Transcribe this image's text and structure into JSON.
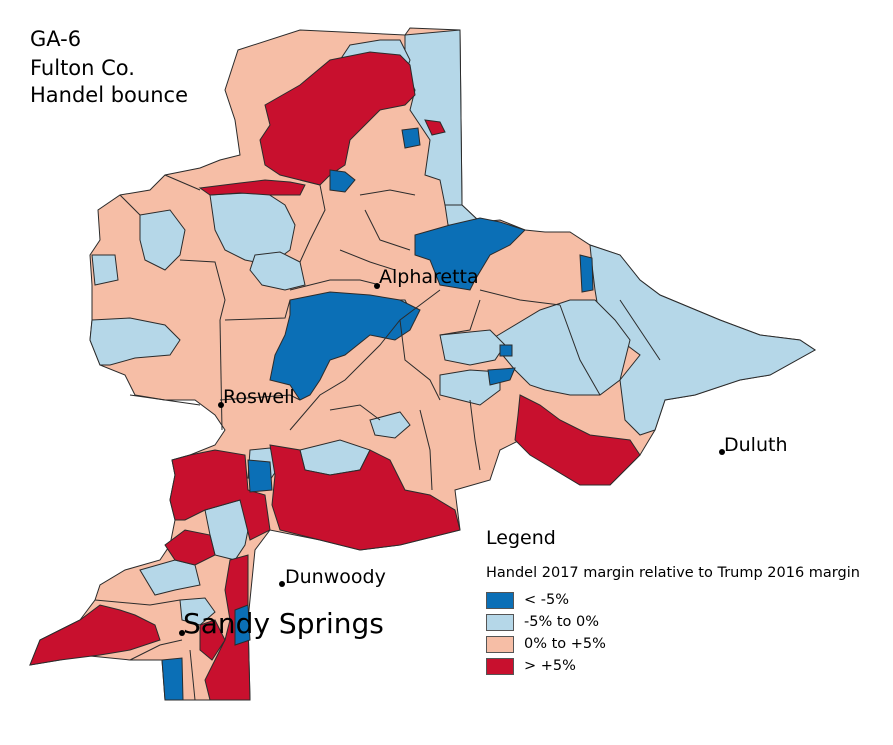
{
  "title": {
    "lines": [
      "GA-6",
      "Fulton Co.",
      "Handel bounce"
    ]
  },
  "colors": {
    "strong_blue": "#0b6fb6",
    "light_blue": "#b5d7e8",
    "light_salmon": "#f6bea6",
    "strong_red": "#c8102e",
    "boundary": "#2b2b2b"
  },
  "places": [
    {
      "name": "Alpharetta",
      "key": "alpharetta"
    },
    {
      "name": "Roswell",
      "key": "roswell"
    },
    {
      "name": "Duluth",
      "key": "duluth"
    },
    {
      "name": "Dunwoody",
      "key": "dunwoody"
    },
    {
      "name": "Sandy Springs",
      "key": "sandy-springs"
    }
  ],
  "legend": {
    "title": "Legend",
    "subtitle": "Handel 2017 margin relative to Trump 2016 margin",
    "items": [
      {
        "label": "< -5%",
        "color": "#0b6fb6"
      },
      {
        "label": "-5% to 0%",
        "color": "#b5d7e8"
      },
      {
        "label": "0% to +5%",
        "color": "#f6bea6"
      },
      {
        "label": "> +5%",
        "color": "#c8102e"
      }
    ]
  }
}
